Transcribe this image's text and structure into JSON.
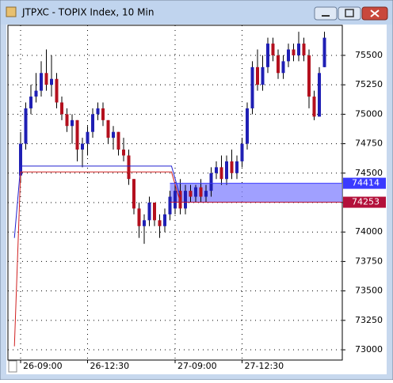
{
  "chart_data": {
    "type": "candlestick",
    "title": "JTPXC - TOPIX Index, 10 Min",
    "categories": [
      "26-09:00",
      null,
      null,
      null,
      null,
      null,
      null,
      null,
      null,
      null,
      null,
      null,
      null,
      "26-12:30",
      null,
      null,
      null,
      null,
      null,
      null,
      null,
      null,
      null,
      null,
      null,
      null,
      null,
      null,
      null,
      null,
      "27-09:00",
      null,
      null,
      null,
      null,
      null,
      null,
      null,
      null,
      null,
      null,
      null,
      null,
      "27-12:30",
      null,
      null,
      null,
      null,
      null,
      null,
      null,
      null,
      null,
      null,
      null,
      null,
      null,
      null,
      null,
      null
    ],
    "open": [
      74480,
      74750,
      75050,
      75150,
      75200,
      75350,
      75250,
      75300,
      75100,
      75000,
      74900,
      74950,
      74700,
      74750,
      74850,
      75000,
      75050,
      74950,
      74800,
      74850,
      74700,
      74650,
      74450,
      74200,
      74050,
      74100,
      74250,
      74100,
      74050,
      74150,
      74200,
      74350,
      74200,
      74350,
      74300,
      74380,
      74300,
      74350,
      74500,
      74550,
      74450,
      74600,
      74500,
      74600,
      74750,
      75050,
      75400,
      75250,
      75400,
      75600,
      75500,
      75350,
      75450,
      75550,
      75500,
      75600,
      75500,
      75150,
      74980,
      75400
    ],
    "high": [
      74850,
      75100,
      75250,
      75350,
      75450,
      75550,
      75500,
      75350,
      75150,
      75050,
      75000,
      74950,
      74800,
      74900,
      75050,
      75100,
      75100,
      74950,
      74900,
      74850,
      74800,
      74700,
      74450,
      74250,
      74150,
      74300,
      74250,
      74150,
      74200,
      74350,
      74400,
      74450,
      74400,
      74400,
      74400,
      74450,
      74400,
      74550,
      74600,
      74650,
      74650,
      74700,
      74650,
      74800,
      75100,
      75450,
      75550,
      75500,
      75650,
      75650,
      75550,
      75500,
      75600,
      75600,
      75700,
      75650,
      75550,
      75200,
      75400,
      75700
    ],
    "low": [
      74420,
      74700,
      75000,
      75100,
      75150,
      75200,
      75150,
      75050,
      74950,
      74850,
      74750,
      74600,
      74550,
      74650,
      74800,
      74950,
      74900,
      74750,
      74700,
      74650,
      74600,
      74400,
      74150,
      73950,
      73900,
      74050,
      74050,
      73950,
      74000,
      74100,
      74150,
      74150,
      74150,
      74250,
      74250,
      74250,
      74250,
      74300,
      74450,
      74400,
      74400,
      74450,
      74450,
      74550,
      74700,
      75000,
      75200,
      75200,
      75350,
      75450,
      75300,
      75300,
      75400,
      75450,
      75450,
      75450,
      75050,
      74950,
      74980,
      75400
    ],
    "close": [
      74750,
      75050,
      75150,
      75200,
      75350,
      75250,
      75300,
      75100,
      75000,
      74900,
      74950,
      74700,
      74750,
      74850,
      75000,
      75050,
      74950,
      74800,
      74850,
      74700,
      74650,
      74450,
      74200,
      74050,
      74100,
      74250,
      74100,
      74050,
      74150,
      74300,
      74350,
      74200,
      74350,
      74300,
      74380,
      74300,
      74350,
      74500,
      74550,
      74450,
      74600,
      74500,
      74600,
      74750,
      75050,
      75400,
      75250,
      75400,
      75600,
      75500,
      75350,
      75450,
      75550,
      75500,
      75600,
      75500,
      75150,
      74980,
      75350,
      75650
    ],
    "up_color": "#1f1fb4",
    "down_color": "#b4101e",
    "ylim": [
      72913,
      75755
    ],
    "yticks": [
      73000,
      73250,
      73500,
      73750,
      74000,
      74250,
      74500,
      74750,
      75000,
      75250,
      75500
    ],
    "grid": true,
    "lines": [
      {
        "color": "#2020d0",
        "x": [
          -1.2,
          0,
          29.3,
          31
        ],
        "values": [
          73950,
          74560,
          74560,
          74300
        ]
      },
      {
        "color": "#d02020",
        "x": [
          -1.2,
          0,
          29.3,
          31
        ],
        "values": [
          73030,
          74510,
          74510,
          74253
        ]
      }
    ],
    "levels": [
      {
        "value": 74414,
        "color": "#3a3aff"
      },
      {
        "value": 74253,
        "color": "#b3103a"
      }
    ]
  }
}
